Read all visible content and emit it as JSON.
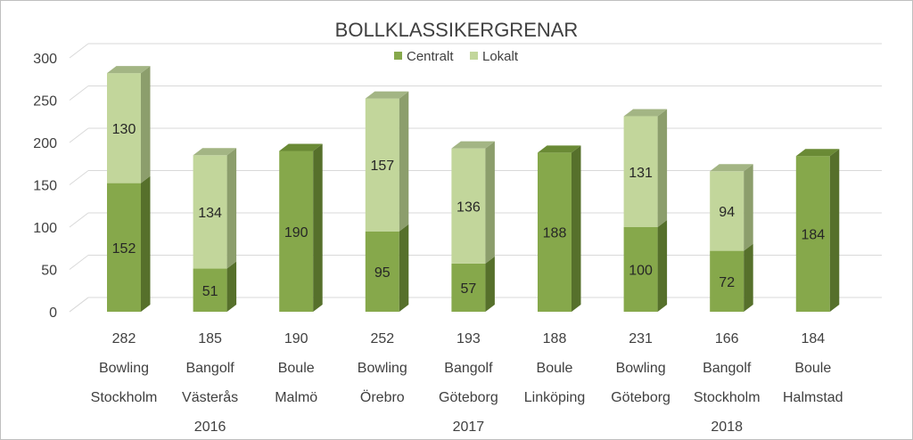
{
  "chart_data": {
    "type": "bar",
    "stacked": true,
    "three_d": true,
    "title": "BOLLKLASSIKERGRENAR",
    "ylim": [
      0,
      300
    ],
    "yticks": [
      0,
      50,
      100,
      150,
      200,
      250,
      300
    ],
    "grid": true,
    "legend_position": "top",
    "categories": [
      {
        "total": "282",
        "sport": "Bowling",
        "city": "Stockholm"
      },
      {
        "total": "185",
        "sport": "Bangolf",
        "city": "Västerås"
      },
      {
        "total": "190",
        "sport": "Boule",
        "city": "Malmö"
      },
      {
        "total": "252",
        "sport": "Bowling",
        "city": "Örebro"
      },
      {
        "total": "193",
        "sport": "Bangolf",
        "city": "Göteborg"
      },
      {
        "total": "188",
        "sport": "Boule",
        "city": "Linköping"
      },
      {
        "total": "231",
        "sport": "Bowling",
        "city": "Göteborg"
      },
      {
        "total": "166",
        "sport": "Bangolf",
        "city": "Stockholm"
      },
      {
        "total": "184",
        "sport": "Boule",
        "city": "Halmstad"
      }
    ],
    "years": [
      {
        "label": "2016",
        "center_index": 1
      },
      {
        "label": "2017",
        "center_index": 4
      },
      {
        "label": "2018",
        "center_index": 7
      }
    ],
    "series": [
      {
        "name": "Centralt",
        "color": "#86a84b",
        "side": "#56702b",
        "top": "#6a8a35",
        "values": [
          152,
          51,
          190,
          95,
          57,
          188,
          100,
          72,
          184
        ]
      },
      {
        "name": "Lokalt",
        "color": "#c2d69b",
        "side": "#8c9e6c",
        "top": "#a3b584",
        "values": [
          130,
          134,
          null,
          157,
          136,
          null,
          131,
          94,
          null
        ]
      }
    ]
  }
}
